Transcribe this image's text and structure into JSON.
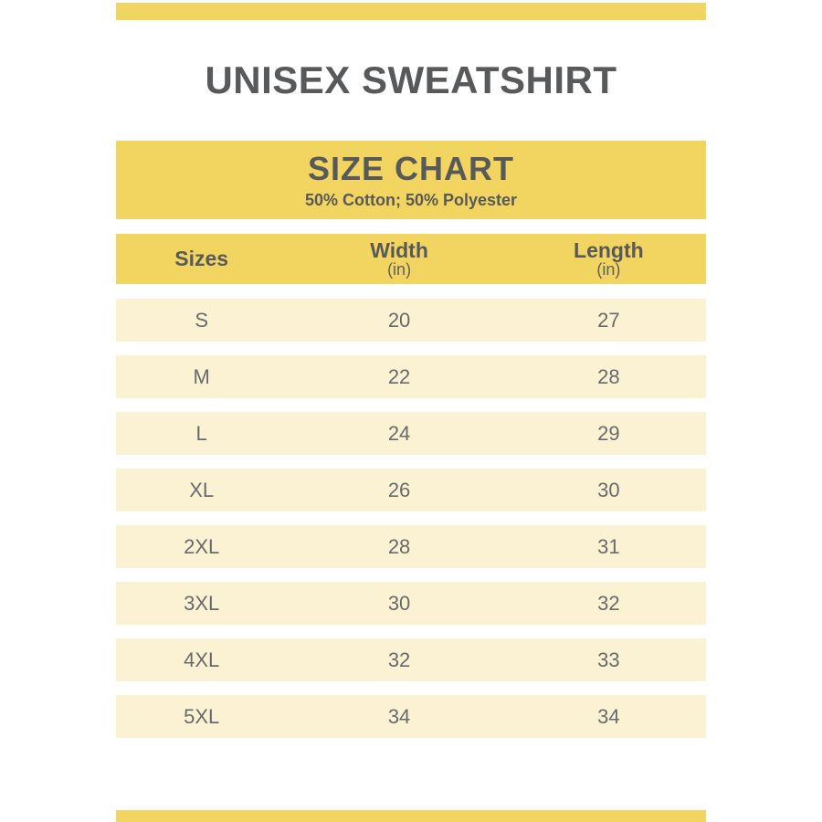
{
  "page": {
    "title": "UNISEX SWEATSHIRT"
  },
  "size_chart": {
    "heading": "SIZE CHART",
    "subheading": "50% Cotton; 50% Polyester"
  },
  "table": {
    "columns": [
      {
        "label": "Sizes"
      },
      {
        "label": "Width",
        "unit": "(in)"
      },
      {
        "label": "Length",
        "unit": "(in)"
      }
    ],
    "rows": [
      {
        "size": "S",
        "width": "20",
        "length": "27"
      },
      {
        "size": "M",
        "width": "22",
        "length": "28"
      },
      {
        "size": "L",
        "width": "24",
        "length": "29"
      },
      {
        "size": "XL",
        "width": "26",
        "length": "30"
      },
      {
        "size": "2XL",
        "width": "28",
        "length": "31"
      },
      {
        "size": "3XL",
        "width": "30",
        "length": "32"
      },
      {
        "size": "4XL",
        "width": "32",
        "length": "33"
      },
      {
        "size": "5XL",
        "width": "34",
        "length": "34"
      }
    ]
  },
  "colors": {
    "accent_yellow": "#F2D561",
    "row_cream": "#FAF2D2",
    "heading_text": "#58595B",
    "cell_text": "#696A6C",
    "background": "#FFFFFF"
  }
}
